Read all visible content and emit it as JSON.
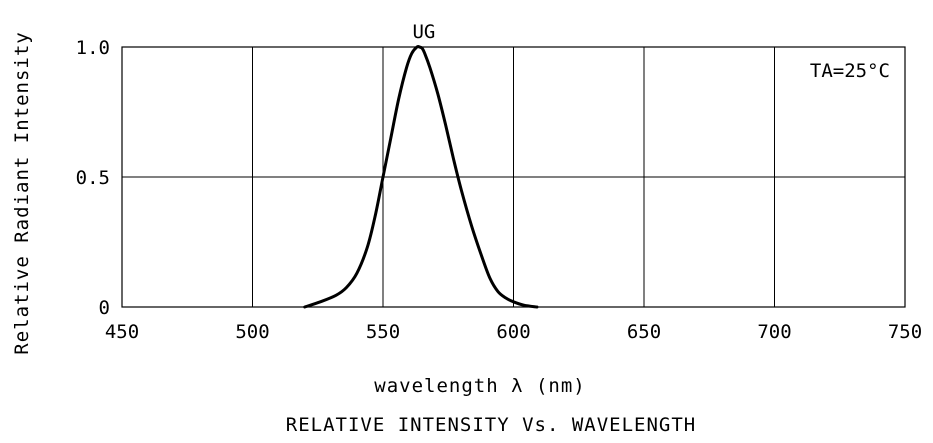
{
  "chart_data": {
    "type": "line",
    "title": "RELATIVE INTENSITY Vs. WAVELENGTH",
    "xlabel": "wavelength λ  (nm)",
    "ylabel": "Relative Radiant Intensity",
    "xlim": [
      450,
      750
    ],
    "ylim": [
      0,
      1.0
    ],
    "x_ticks": [
      450,
      500,
      550,
      600,
      650,
      700,
      750
    ],
    "x_tick_labels": [
      "450",
      "500",
      "550",
      "600",
      "650",
      "700",
      "750"
    ],
    "y_ticks": [
      0,
      0.5,
      1.0
    ],
    "y_tick_labels": [
      "0",
      "0.5",
      "1.0"
    ],
    "grid": true,
    "series": [
      {
        "name": "UG",
        "x": [
          520,
          526,
          532,
          536,
          540,
          544,
          547,
          550,
          553,
          556,
          559,
          561,
          563,
          564,
          565,
          566,
          568,
          571,
          574,
          577,
          580,
          584,
          588,
          591,
          594,
          597,
          600,
          604,
          609
        ],
        "y": [
          0.0,
          0.02,
          0.045,
          0.075,
          0.13,
          0.23,
          0.35,
          0.5,
          0.65,
          0.8,
          0.92,
          0.975,
          1.0,
          1.0,
          0.995,
          0.975,
          0.92,
          0.82,
          0.7,
          0.57,
          0.45,
          0.31,
          0.19,
          0.11,
          0.06,
          0.035,
          0.02,
          0.007,
          0.0
        ]
      }
    ],
    "annotations": [
      {
        "text": "TA=25°C",
        "position": "top-right"
      }
    ],
    "colors": {
      "line": "#000000",
      "grid": "#000000",
      "background": "#ffffff"
    }
  }
}
